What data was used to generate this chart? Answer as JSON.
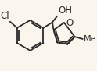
{
  "bg_color": "#faf6ee",
  "line_color": "#2a2a2a",
  "text_color": "#2a2a2a",
  "figsize": [
    1.24,
    0.91
  ],
  "dpi": 100,
  "lw": 1.3,
  "fs": 8.5,
  "cl_label": "Cl",
  "oh_label": "OH",
  "o_label": "O",
  "me_label": "Me"
}
